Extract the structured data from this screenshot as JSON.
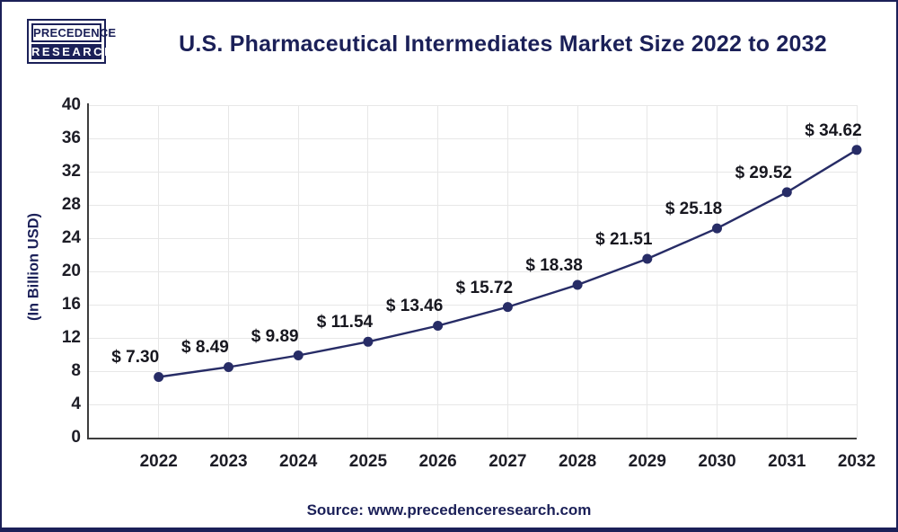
{
  "page": {
    "logo": {
      "line1": "PRECEDENCE",
      "line2": "RESEARCH"
    },
    "title": "U.S. Pharmaceutical Intermediates Market Size 2022 to 2032",
    "source": "Source: www.precedenceresearch.com"
  },
  "colors": {
    "navy": "#1b2058",
    "line": "#272c66",
    "tick_text": "#1d1d26",
    "point_label_text": "#17171f",
    "gridline": "#e7e7e7",
    "axis": "#3d3d3d"
  },
  "chart_data": {
    "type": "line",
    "title": "U.S. Pharmaceutical Intermediates Market Size 2022 to 2032",
    "ylabel": "(In Billion USD)",
    "categories": [
      "2022",
      "2023",
      "2024",
      "2025",
      "2026",
      "2027",
      "2028",
      "2029",
      "2030",
      "2031",
      "2032"
    ],
    "values": [
      7.3,
      8.49,
      9.89,
      11.54,
      13.46,
      15.72,
      18.38,
      21.51,
      25.18,
      29.52,
      34.62
    ],
    "point_labels": [
      "$ 7.30",
      "$ 8.49",
      "$ 9.89",
      "$ 11.54",
      "$ 13.46",
      "$ 15.72",
      "$ 18.38",
      "$ 21.51",
      "$ 25.18",
      "$ 29.52",
      "$ 34.62"
    ],
    "ylim": [
      0,
      40
    ],
    "ytick_step": 4,
    "grid": true,
    "legend": false
  }
}
